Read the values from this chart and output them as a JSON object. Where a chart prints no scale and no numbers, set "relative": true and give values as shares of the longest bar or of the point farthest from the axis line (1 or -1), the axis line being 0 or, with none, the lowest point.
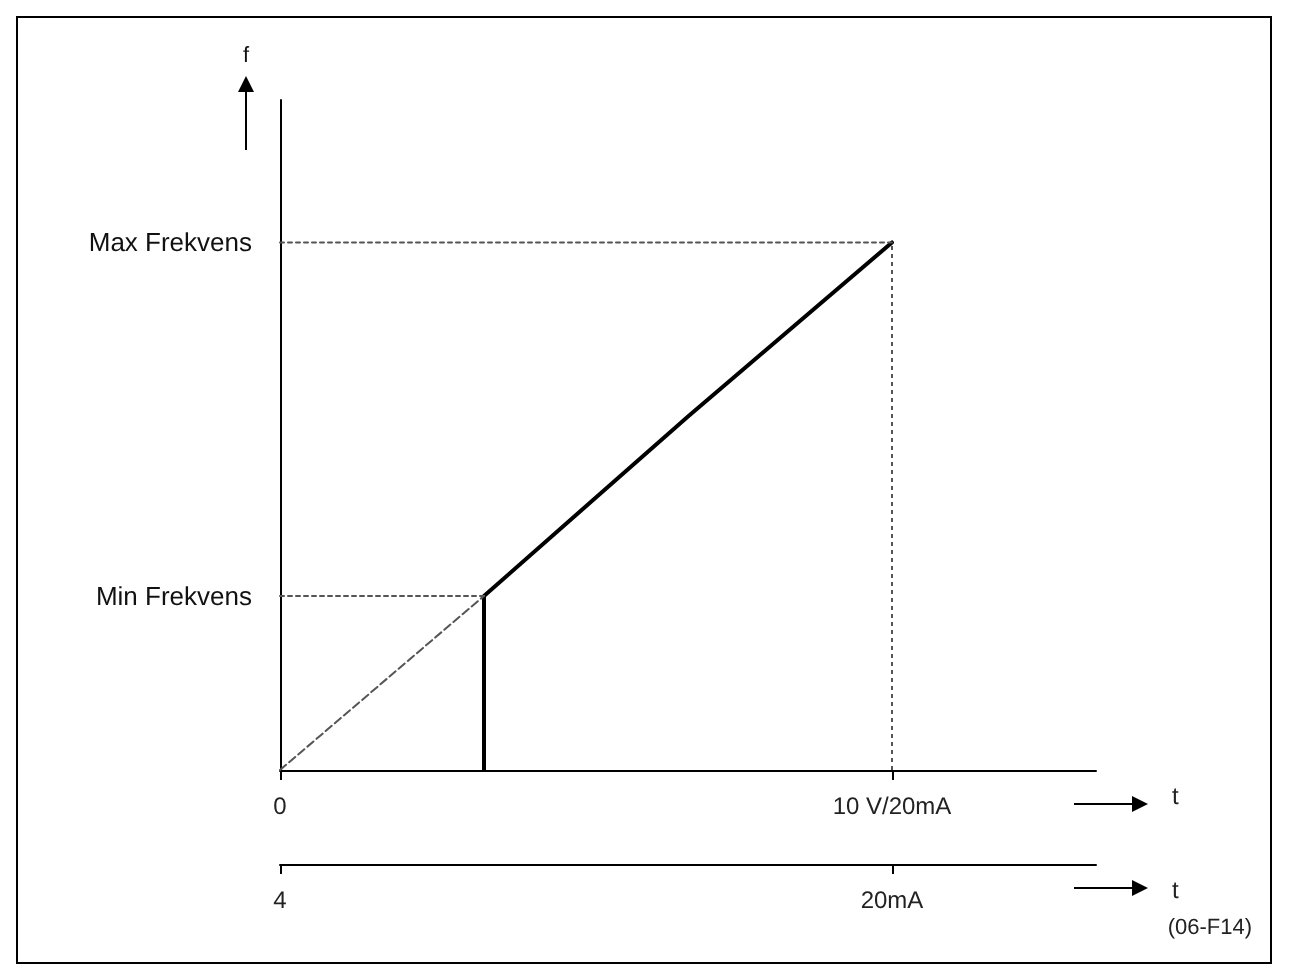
{
  "chart_data": {
    "type": "line",
    "xlabel": "t",
    "x2label": "t",
    "relative": true,
    "categories": [
      "0",
      null,
      null,
      "10 V/20mA",
      null
    ],
    "grid": false,
    "marker": "none",
    "series": [
      {
        "color": "#000000",
        "line_style": "solid",
        "values": [
          null,
          0.33,
          0.67,
          1,
          null
        ]
      },
      {
        "color": "#000000",
        "type": "bar",
        "values": [
          null,
          0.33,
          null,
          null,
          null
        ]
      },
      {
        "color": "#555555",
        "line_style": "dotted",
        "values": [
          1,
          1,
          1,
          1,
          null
        ]
      },
      {
        "color": "#555555",
        "line_style": "dotted",
        "values": [
          0.33,
          0.33,
          null,
          null,
          null
        ]
      },
      {
        "color": "#555555",
        "line_style": "dashed",
        "values": [
          0,
          0.33,
          null,
          null,
          null
        ]
      }
    ],
    "ref_lines": [
      {
        "axis": "x",
        "value": "10 V/20mA",
        "color": "#555555",
        "line_style": "dotted"
      }
    ],
    "annotations": [
      "f",
      "Max Frekvens",
      "Min Frekvens",
      "4",
      "20mA",
      "(06-F14)"
    ]
  }
}
